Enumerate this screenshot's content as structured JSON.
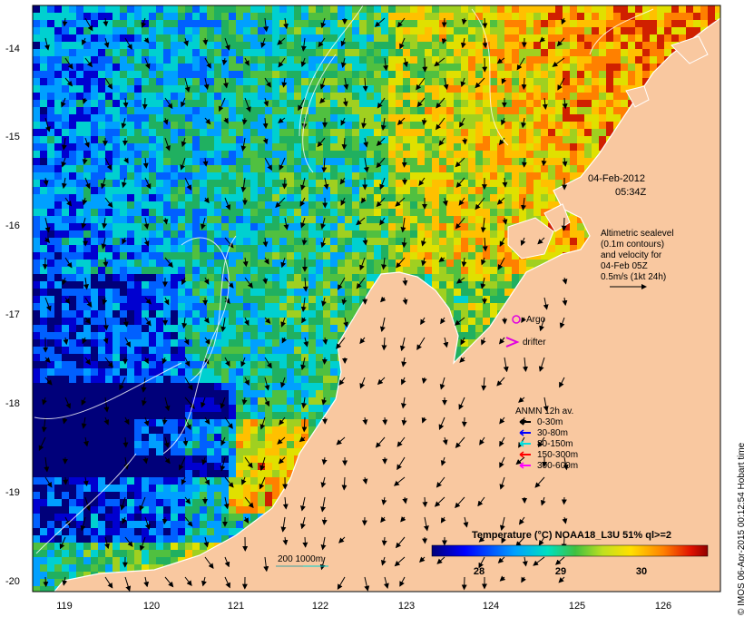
{
  "map": {
    "lat_ticks": [
      "-14",
      "-15",
      "-16",
      "-17",
      "-18",
      "-19",
      "-20"
    ],
    "lon_ticks": [
      "119",
      "120",
      "121",
      "122",
      "123",
      "124",
      "125",
      "126"
    ],
    "date": "04-Feb-2012",
    "time": "05:34Z",
    "altimetry_note": [
      "Altimetric sealevel",
      "(0.1m contours)",
      "and velocity for",
      "04-Feb 05Z",
      "0.5m/s (1kt 24h)"
    ],
    "argo_label": "Argo",
    "drifter_label": "drifter",
    "anmn_title": "ANMN 12h av.",
    "anmn_legend": [
      {
        "label": "0-30m",
        "color": "#000000"
      },
      {
        "label": "30-80m",
        "color": "#0000ff"
      },
      {
        "label": "80-150m",
        "color": "#00e0e0"
      },
      {
        "label": "150-300m",
        "color": "#ff0000"
      },
      {
        "label": "300-600m",
        "color": "#ff00ff"
      }
    ],
    "depth_contour_label": "200  1000m",
    "colorbar_title": "Temperature (°C) NOAA18_L3U 51% ql>=2",
    "colorbar_ticks": [
      "28",
      "29",
      "30"
    ],
    "credit": "© IMOS 06-Apr-2015 00:12:54 Hobart time",
    "colors": {
      "land": "#f9c8a0",
      "coast": "#ffffff",
      "arrow": "#000000",
      "argo": "#e000e0"
    }
  }
}
